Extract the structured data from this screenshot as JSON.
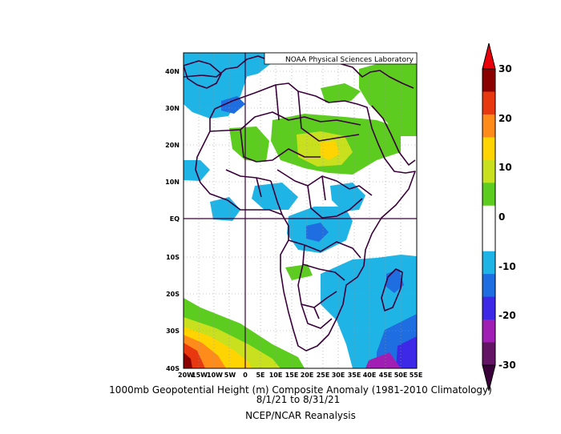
{
  "header": {
    "lab": "NOAA Physical Sciences Laboratory"
  },
  "map": {
    "lat_ticks": [
      "40N",
      "30N",
      "20N",
      "10N",
      "EQ",
      "10S",
      "20S",
      "30S",
      "40S"
    ],
    "lon_ticks": [
      "20W",
      "15W",
      "10W",
      "5W",
      "0",
      "5E",
      "10E",
      "15E",
      "20E",
      "25E",
      "30E",
      "35E",
      "40E",
      "45E",
      "50E",
      "55E"
    ],
    "lat_range": [
      -40,
      45
    ],
    "lon_range": [
      -20,
      55
    ]
  },
  "colorbar": {
    "labels": [
      "30",
      "20",
      "10",
      "0",
      "-10",
      "-20",
      "-30"
    ],
    "colors": [
      "#8b0000",
      "#e8380f",
      "#ff8c1a",
      "#ffd400",
      "#c8e01e",
      "#5ccc1e",
      "#ffffff",
      "#ffffff",
      "#1eb4e6",
      "#1e6ee1",
      "#3c28e6",
      "#a01eb4",
      "#641464"
    ]
  },
  "caption": {
    "line1": "1000mb Geopotential Height (m) Composite Anomaly (1981-2010 Climatology)",
    "line2": "8/1/21   to 8/31/21",
    "line3": "NCEP/NCAR Reanalysis"
  }
}
